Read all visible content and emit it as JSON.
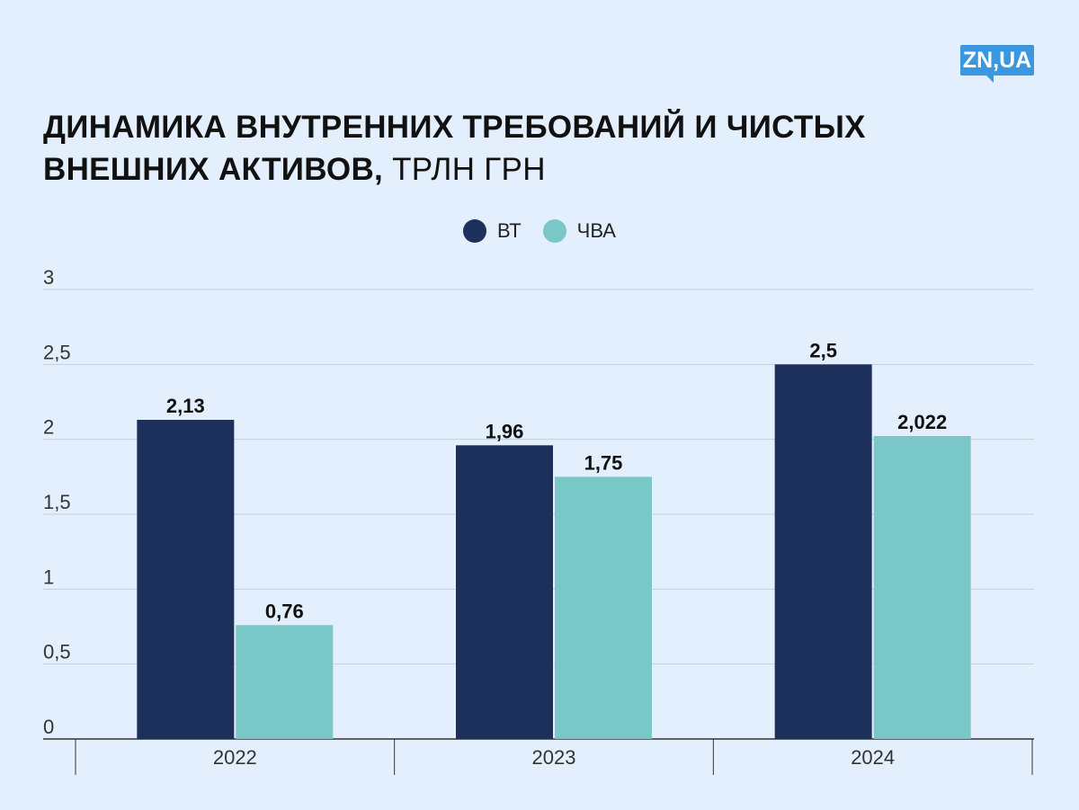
{
  "brand": {
    "logo_text": "ZN,UA"
  },
  "header": {
    "title_bold": "ДИНАМИКА ВНУТРЕННИХ ТРЕБОВАНИЙ И ЧИСТЫХ ВНЕШНИХ АКТИВОВ,",
    "title_unit": "ТРЛН ГРН"
  },
  "legend": [
    {
      "label": "ВТ",
      "color": "#1d305c"
    },
    {
      "label": "ЧВА",
      "color": "#79c7c7"
    }
  ],
  "chart_data": {
    "type": "bar",
    "title": "ДИНАМИКА ВНУТРЕННИХ ТРЕБОВАНИЙ И ЧИСТЫХ ВНЕШНИХ АКТИВОВ, ТРЛН ГРН",
    "categories": [
      "2022",
      "2023",
      "2024"
    ],
    "series": [
      {
        "name": "ВТ",
        "color": "#1d305c",
        "values": [
          2.13,
          1.96,
          2.5
        ],
        "labels": [
          "2,13",
          "1,96",
          "2,5"
        ]
      },
      {
        "name": "ЧВА",
        "color": "#79c7c7",
        "values": [
          0.76,
          1.75,
          2.022
        ],
        "labels": [
          "0,76",
          "1,75",
          "2,022"
        ]
      }
    ],
    "ylim": [
      0,
      3
    ],
    "yticks": [
      0,
      0.5,
      1,
      1.5,
      2,
      2.5,
      3
    ],
    "ytick_labels": [
      "0",
      "0,5",
      "1",
      "1,5",
      "2",
      "2,5",
      "3"
    ],
    "xlabel": "",
    "ylabel": "",
    "grid": true,
    "legend_position": "top-center"
  }
}
